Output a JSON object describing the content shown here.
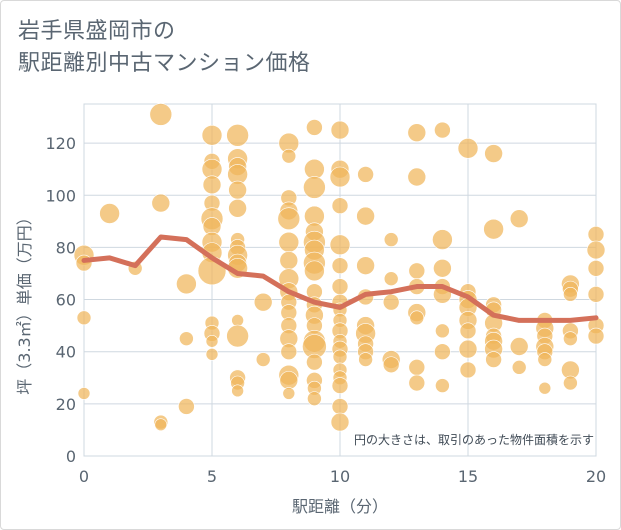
{
  "title_line1": "岩手県盛岡市の",
  "title_line2": "駅距離別中古マンション価格",
  "chart_data": {
    "type": "scatter",
    "xlabel": "駅距離（分）",
    "ylabel": "坪（3.3㎡）単価（万円）",
    "xlim": [
      0,
      20
    ],
    "ylim": [
      0,
      135
    ],
    "xticks": [
      0,
      5,
      10,
      15,
      20
    ],
    "yticks": [
      0,
      20,
      40,
      60,
      80,
      100,
      120
    ],
    "grid": true,
    "annotation": "円の大きさは、取引のあった物件面積を示す",
    "colors": {
      "bubble": "#f0b65a",
      "line": "#d4705a",
      "grid": "#cfd8e0",
      "text": "#5a6672"
    },
    "trend_line": {
      "x": [
        0,
        1,
        2,
        3,
        4,
        5,
        6,
        7,
        8,
        9,
        10,
        11,
        12,
        13,
        14,
        15,
        16,
        17,
        18,
        19,
        20
      ],
      "y": [
        75,
        76,
        73,
        84,
        83,
        76,
        70,
        69,
        63,
        59,
        57,
        62,
        63,
        65,
        65,
        61,
        54,
        52,
        52,
        52,
        53
      ]
    },
    "bubbles": [
      {
        "x": 0,
        "y": 77,
        "s": 10
      },
      {
        "x": 0,
        "y": 74,
        "s": 8
      },
      {
        "x": 0,
        "y": 53,
        "s": 7
      },
      {
        "x": 0,
        "y": 24,
        "s": 6
      },
      {
        "x": 1,
        "y": 93,
        "s": 10
      },
      {
        "x": 2,
        "y": 72,
        "s": 7
      },
      {
        "x": 3,
        "y": 131,
        "s": 11
      },
      {
        "x": 3,
        "y": 97,
        "s": 9
      },
      {
        "x": 3,
        "y": 13,
        "s": 7
      },
      {
        "x": 3,
        "y": 12,
        "s": 6
      },
      {
        "x": 4,
        "y": 66,
        "s": 10
      },
      {
        "x": 4,
        "y": 45,
        "s": 7
      },
      {
        "x": 4,
        "y": 19,
        "s": 8
      },
      {
        "x": 5,
        "y": 123,
        "s": 10
      },
      {
        "x": 5,
        "y": 113,
        "s": 8
      },
      {
        "x": 5,
        "y": 110,
        "s": 10
      },
      {
        "x": 5,
        "y": 104,
        "s": 9
      },
      {
        "x": 5,
        "y": 97,
        "s": 8
      },
      {
        "x": 5,
        "y": 91,
        "s": 11
      },
      {
        "x": 5,
        "y": 88,
        "s": 9
      },
      {
        "x": 5,
        "y": 82,
        "s": 10
      },
      {
        "x": 5,
        "y": 78,
        "s": 10
      },
      {
        "x": 5,
        "y": 71,
        "s": 14
      },
      {
        "x": 5,
        "y": 51,
        "s": 7
      },
      {
        "x": 5,
        "y": 47,
        "s": 8
      },
      {
        "x": 5,
        "y": 44,
        "s": 6
      },
      {
        "x": 5,
        "y": 39,
        "s": 6
      },
      {
        "x": 6,
        "y": 123,
        "s": 11
      },
      {
        "x": 6,
        "y": 114,
        "s": 10
      },
      {
        "x": 6,
        "y": 111,
        "s": 9
      },
      {
        "x": 6,
        "y": 108,
        "s": 10
      },
      {
        "x": 6,
        "y": 102,
        "s": 9
      },
      {
        "x": 6,
        "y": 95,
        "s": 9
      },
      {
        "x": 6,
        "y": 83,
        "s": 7
      },
      {
        "x": 6,
        "y": 80,
        "s": 8
      },
      {
        "x": 6,
        "y": 77,
        "s": 10
      },
      {
        "x": 6,
        "y": 74,
        "s": 9
      },
      {
        "x": 6,
        "y": 72,
        "s": 10
      },
      {
        "x": 6,
        "y": 52,
        "s": 6
      },
      {
        "x": 6,
        "y": 46,
        "s": 11
      },
      {
        "x": 6,
        "y": 30,
        "s": 8
      },
      {
        "x": 6,
        "y": 28,
        "s": 7
      },
      {
        "x": 6,
        "y": 25,
        "s": 6
      },
      {
        "x": 7,
        "y": 59,
        "s": 9
      },
      {
        "x": 7,
        "y": 37,
        "s": 7
      },
      {
        "x": 8,
        "y": 120,
        "s": 10
      },
      {
        "x": 8,
        "y": 115,
        "s": 7
      },
      {
        "x": 8,
        "y": 99,
        "s": 8
      },
      {
        "x": 8,
        "y": 94,
        "s": 9
      },
      {
        "x": 8,
        "y": 91,
        "s": 11
      },
      {
        "x": 8,
        "y": 82,
        "s": 10
      },
      {
        "x": 8,
        "y": 75,
        "s": 9
      },
      {
        "x": 8,
        "y": 68,
        "s": 10
      },
      {
        "x": 8,
        "y": 63,
        "s": 9
      },
      {
        "x": 8,
        "y": 59,
        "s": 8
      },
      {
        "x": 8,
        "y": 55,
        "s": 8
      },
      {
        "x": 8,
        "y": 50,
        "s": 8
      },
      {
        "x": 8,
        "y": 45,
        "s": 9
      },
      {
        "x": 8,
        "y": 40,
        "s": 8
      },
      {
        "x": 8,
        "y": 31,
        "s": 10
      },
      {
        "x": 8,
        "y": 29,
        "s": 9
      },
      {
        "x": 8,
        "y": 24,
        "s": 6
      },
      {
        "x": 9,
        "y": 126,
        "s": 8
      },
      {
        "x": 9,
        "y": 110,
        "s": 10
      },
      {
        "x": 9,
        "y": 103,
        "s": 11
      },
      {
        "x": 9,
        "y": 92,
        "s": 10
      },
      {
        "x": 9,
        "y": 86,
        "s": 9
      },
      {
        "x": 9,
        "y": 82,
        "s": 11
      },
      {
        "x": 9,
        "y": 79,
        "s": 10
      },
      {
        "x": 9,
        "y": 74,
        "s": 11
      },
      {
        "x": 9,
        "y": 71,
        "s": 10
      },
      {
        "x": 9,
        "y": 63,
        "s": 8
      },
      {
        "x": 9,
        "y": 58,
        "s": 8
      },
      {
        "x": 9,
        "y": 54,
        "s": 9
      },
      {
        "x": 9,
        "y": 50,
        "s": 8
      },
      {
        "x": 9,
        "y": 44,
        "s": 11
      },
      {
        "x": 9,
        "y": 42,
        "s": 12
      },
      {
        "x": 9,
        "y": 36,
        "s": 8
      },
      {
        "x": 9,
        "y": 29,
        "s": 8
      },
      {
        "x": 9,
        "y": 26,
        "s": 7
      },
      {
        "x": 9,
        "y": 22,
        "s": 7
      },
      {
        "x": 10,
        "y": 125,
        "s": 9
      },
      {
        "x": 10,
        "y": 110,
        "s": 9
      },
      {
        "x": 10,
        "y": 107,
        "s": 10
      },
      {
        "x": 10,
        "y": 96,
        "s": 8
      },
      {
        "x": 10,
        "y": 81,
        "s": 10
      },
      {
        "x": 10,
        "y": 73,
        "s": 8
      },
      {
        "x": 10,
        "y": 65,
        "s": 8
      },
      {
        "x": 10,
        "y": 59,
        "s": 8
      },
      {
        "x": 10,
        "y": 56,
        "s": 7
      },
      {
        "x": 10,
        "y": 52,
        "s": 7
      },
      {
        "x": 10,
        "y": 48,
        "s": 8
      },
      {
        "x": 10,
        "y": 44,
        "s": 7
      },
      {
        "x": 10,
        "y": 41,
        "s": 8
      },
      {
        "x": 10,
        "y": 38,
        "s": 7
      },
      {
        "x": 10,
        "y": 33,
        "s": 7
      },
      {
        "x": 10,
        "y": 30,
        "s": 7
      },
      {
        "x": 10,
        "y": 27,
        "s": 8
      },
      {
        "x": 10,
        "y": 19,
        "s": 8
      },
      {
        "x": 10,
        "y": 13,
        "s": 9
      },
      {
        "x": 11,
        "y": 108,
        "s": 8
      },
      {
        "x": 11,
        "y": 92,
        "s": 9
      },
      {
        "x": 11,
        "y": 73,
        "s": 9
      },
      {
        "x": 11,
        "y": 61,
        "s": 8
      },
      {
        "x": 11,
        "y": 50,
        "s": 9
      },
      {
        "x": 11,
        "y": 47,
        "s": 10
      },
      {
        "x": 11,
        "y": 43,
        "s": 8
      },
      {
        "x": 11,
        "y": 40,
        "s": 8
      },
      {
        "x": 11,
        "y": 37,
        "s": 7
      },
      {
        "x": 12,
        "y": 83,
        "s": 7
      },
      {
        "x": 12,
        "y": 68,
        "s": 7
      },
      {
        "x": 12,
        "y": 59,
        "s": 8
      },
      {
        "x": 12,
        "y": 37,
        "s": 9
      },
      {
        "x": 12,
        "y": 35,
        "s": 8
      },
      {
        "x": 13,
        "y": 124,
        "s": 9
      },
      {
        "x": 13,
        "y": 107,
        "s": 9
      },
      {
        "x": 13,
        "y": 71,
        "s": 8
      },
      {
        "x": 13,
        "y": 65,
        "s": 8
      },
      {
        "x": 13,
        "y": 55,
        "s": 9
      },
      {
        "x": 13,
        "y": 53,
        "s": 7
      },
      {
        "x": 13,
        "y": 34,
        "s": 8
      },
      {
        "x": 13,
        "y": 28,
        "s": 8
      },
      {
        "x": 14,
        "y": 125,
        "s": 8
      },
      {
        "x": 14,
        "y": 83,
        "s": 10
      },
      {
        "x": 14,
        "y": 72,
        "s": 9
      },
      {
        "x": 14,
        "y": 65,
        "s": 8
      },
      {
        "x": 14,
        "y": 62,
        "s": 9
      },
      {
        "x": 14,
        "y": 48,
        "s": 7
      },
      {
        "x": 14,
        "y": 40,
        "s": 8
      },
      {
        "x": 14,
        "y": 27,
        "s": 7
      },
      {
        "x": 15,
        "y": 118,
        "s": 10
      },
      {
        "x": 15,
        "y": 63,
        "s": 8
      },
      {
        "x": 15,
        "y": 60,
        "s": 9
      },
      {
        "x": 15,
        "y": 57,
        "s": 9
      },
      {
        "x": 15,
        "y": 52,
        "s": 9
      },
      {
        "x": 15,
        "y": 48,
        "s": 8
      },
      {
        "x": 15,
        "y": 41,
        "s": 9
      },
      {
        "x": 15,
        "y": 33,
        "s": 8
      },
      {
        "x": 16,
        "y": 116,
        "s": 9
      },
      {
        "x": 16,
        "y": 87,
        "s": 10
      },
      {
        "x": 16,
        "y": 58,
        "s": 8
      },
      {
        "x": 16,
        "y": 56,
        "s": 8
      },
      {
        "x": 16,
        "y": 51,
        "s": 9
      },
      {
        "x": 16,
        "y": 46,
        "s": 8
      },
      {
        "x": 16,
        "y": 44,
        "s": 9
      },
      {
        "x": 16,
        "y": 41,
        "s": 9
      },
      {
        "x": 16,
        "y": 37,
        "s": 8
      },
      {
        "x": 17,
        "y": 91,
        "s": 9
      },
      {
        "x": 17,
        "y": 42,
        "s": 9
      },
      {
        "x": 17,
        "y": 34,
        "s": 7
      },
      {
        "x": 18,
        "y": 52,
        "s": 8
      },
      {
        "x": 18,
        "y": 49,
        "s": 9
      },
      {
        "x": 18,
        "y": 46,
        "s": 8
      },
      {
        "x": 18,
        "y": 42,
        "s": 9
      },
      {
        "x": 18,
        "y": 40,
        "s": 8
      },
      {
        "x": 18,
        "y": 37,
        "s": 7
      },
      {
        "x": 18,
        "y": 26,
        "s": 6
      },
      {
        "x": 19,
        "y": 66,
        "s": 9
      },
      {
        "x": 19,
        "y": 64,
        "s": 8
      },
      {
        "x": 19,
        "y": 62,
        "s": 7
      },
      {
        "x": 19,
        "y": 48,
        "s": 8
      },
      {
        "x": 19,
        "y": 45,
        "s": 7
      },
      {
        "x": 19,
        "y": 33,
        "s": 9
      },
      {
        "x": 19,
        "y": 28,
        "s": 7
      },
      {
        "x": 20,
        "y": 85,
        "s": 8
      },
      {
        "x": 20,
        "y": 79,
        "s": 9
      },
      {
        "x": 20,
        "y": 72,
        "s": 8
      },
      {
        "x": 20,
        "y": 62,
        "s": 8
      },
      {
        "x": 20,
        "y": 50,
        "s": 8
      },
      {
        "x": 20,
        "y": 46,
        "s": 8
      }
    ]
  }
}
